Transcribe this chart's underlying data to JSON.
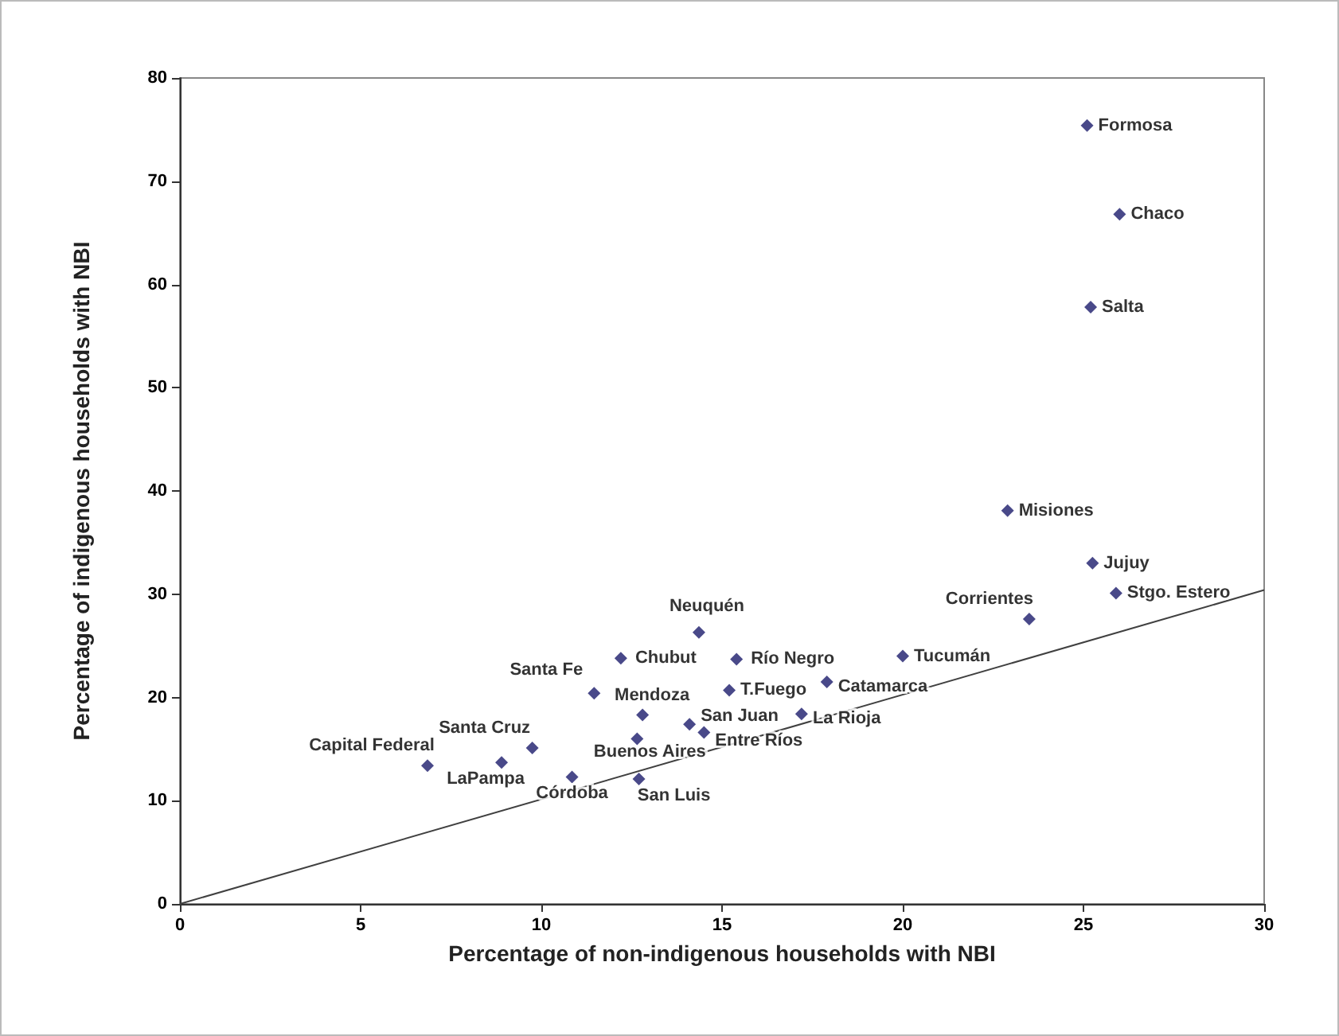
{
  "chart_data": {
    "type": "scatter",
    "xlabel": "Percentage of non-indigenous households with NBI",
    "ylabel": "Percentage of indigenous households with NBI",
    "xlim": [
      0,
      30
    ],
    "xticks": [
      0,
      5,
      10,
      15,
      20,
      25,
      30
    ],
    "ylim": [
      0,
      80
    ],
    "yticks": [
      0,
      10,
      20,
      30,
      40,
      50,
      60,
      70,
      80
    ],
    "grid": false,
    "series": [
      {
        "marker": "diamond",
        "color": "#1c1c6b",
        "x": [
          25.1,
          26.0,
          25.2,
          22.9,
          25.25,
          25.9,
          23.5,
          20.0,
          17.9,
          14.36,
          12.2,
          15.4,
          11.46,
          15.2,
          17.2,
          12.8,
          14.1,
          14.5,
          12.65,
          9.75,
          8.9,
          6.85,
          10.85,
          12.7
        ],
        "values": [
          75.4,
          66.8,
          57.8,
          38.1,
          33.0,
          30.1,
          27.6,
          24.0,
          21.5,
          26.3,
          23.8,
          23.7,
          20.4,
          20.7,
          18.4,
          18.3,
          17.4,
          16.6,
          16.0,
          15.1,
          13.7,
          13.4,
          12.3,
          12.1
        ]
      },
      {
        "type": "line",
        "marker": "none",
        "line_style": "solid",
        "color": "#404040",
        "x": [
          0,
          30
        ],
        "values": [
          0,
          30.4
        ]
      }
    ],
    "annotations": [
      {
        "text": "Formosa",
        "x": 25.1,
        "y": 75.4
      },
      {
        "text": "Chaco",
        "x": 26.0,
        "y": 66.8
      },
      {
        "text": "Salta",
        "x": 25.2,
        "y": 57.8
      },
      {
        "text": "Misiones",
        "x": 22.9,
        "y": 38.1
      },
      {
        "text": "Jujuy",
        "x": 25.25,
        "y": 33.0
      },
      {
        "text": "Stgo. Estero",
        "x": 25.9,
        "y": 30.1
      },
      {
        "text": "Corrientes",
        "x": 23.5,
        "y": 27.6
      },
      {
        "text": "Tucumán",
        "x": 20.0,
        "y": 24.0
      },
      {
        "text": "Catamarca",
        "x": 17.9,
        "y": 21.5
      },
      {
        "text": "Neuquén",
        "x": 14.36,
        "y": 26.3
      },
      {
        "text": "Chubut",
        "x": 12.2,
        "y": 23.8
      },
      {
        "text": "Río Negro",
        "x": 15.4,
        "y": 23.7
      },
      {
        "text": "Santa Fe",
        "x": 11.46,
        "y": 20.4
      },
      {
        "text": "T.Fuego",
        "x": 15.2,
        "y": 20.7
      },
      {
        "text": "La Rioja",
        "x": 17.2,
        "y": 18.4
      },
      {
        "text": "Mendoza",
        "x": 12.8,
        "y": 18.3
      },
      {
        "text": "San Juan",
        "x": 14.1,
        "y": 17.4
      },
      {
        "text": "Entre Ríos",
        "x": 14.5,
        "y": 16.6
      },
      {
        "text": "Buenos Aires",
        "x": 12.65,
        "y": 16.0
      },
      {
        "text": "Santa Cruz",
        "x": 9.75,
        "y": 15.1
      },
      {
        "text": "LaPampa",
        "x": 8.9,
        "y": 13.7
      },
      {
        "text": "Capital Federal",
        "x": 6.85,
        "y": 13.4
      },
      {
        "text": "Córdoba",
        "x": 10.85,
        "y": 12.3
      },
      {
        "text": "San Luis",
        "x": 12.7,
        "y": 12.1
      }
    ]
  }
}
